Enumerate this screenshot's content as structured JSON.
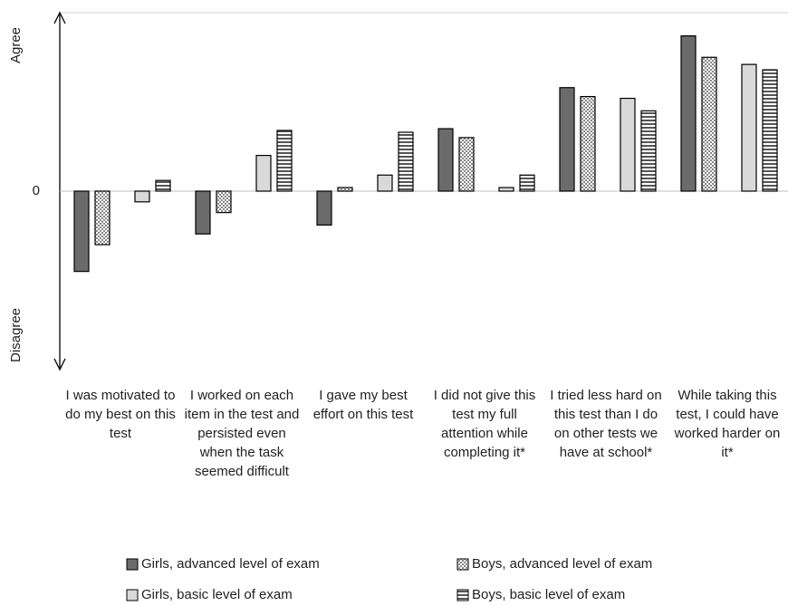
{
  "chart_data": {
    "type": "bar",
    "annotations": [
      "Agree",
      "Disagree"
    ],
    "categories": [
      "I was motivated to do my best on this test",
      "I worked on each item in the test and persisted even when the task seemed difficult",
      "I gave my best effort on this test",
      "I did not give this test my full attention while completing it*",
      "I tried less hard on this test than I do on other tests we have at school*",
      "While taking this test, I could have worked harder on it*"
    ],
    "series": [
      {
        "name": "Girls, advanced level of exam",
        "color": "#6b6b6b",
        "pattern": "solid",
        "values": [
          -0.45,
          -0.24,
          -0.19,
          0.35,
          0.58,
          0.87
        ]
      },
      {
        "name": "Boys, advanced level of exam",
        "color": "#8a8a8a",
        "pattern": "checker",
        "values": [
          -0.3,
          -0.12,
          0.02,
          0.3,
          0.53,
          0.75
        ]
      },
      {
        "name": "Girls, basic level of exam",
        "color": "#d9d9d9",
        "pattern": "solid",
        "values": [
          -0.06,
          0.2,
          0.09,
          0.02,
          0.52,
          0.71
        ]
      },
      {
        "name": "Boys, basic level of exam",
        "color": "#555555",
        "pattern": "stripes",
        "values": [
          0.06,
          0.34,
          0.33,
          0.09,
          0.45,
          0.68
        ]
      }
    ],
    "ylim": [
      -1,
      1
    ],
    "yticks": [
      0
    ],
    "legend": "bottom"
  }
}
